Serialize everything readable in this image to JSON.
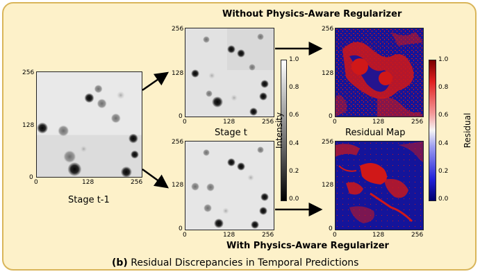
{
  "titles": {
    "top": "Without Physics-Aware Regularizer",
    "bottom": "With Physics-Aware Regularizer",
    "caption_bold": "(b)",
    "caption_rest": " Residual Discrepancies in Temporal Predictions"
  },
  "labels": {
    "stage_prev": "Stage t-1",
    "stage_t": "Stage t",
    "residual_map": "Residual Map",
    "intensity": "Intensity",
    "residual": "Residual"
  },
  "ticks": {
    "t0": "0",
    "t128": "128",
    "t256": "256"
  },
  "colorbars": {
    "intensity": {
      "ticks": [
        "1.0",
        "0.8",
        "0.6",
        "0.4",
        "0.2",
        "0.0"
      ]
    },
    "residual": {
      "ticks": [
        "1.0",
        "0.8",
        "0.6",
        "0.4",
        "0.2",
        "0.0"
      ]
    }
  },
  "colors": {
    "frame_bg": "#fdf1c9",
    "frame_border": "#d9b55a",
    "residual_low": "#0a0aa0",
    "residual_high": "#d01010"
  }
}
